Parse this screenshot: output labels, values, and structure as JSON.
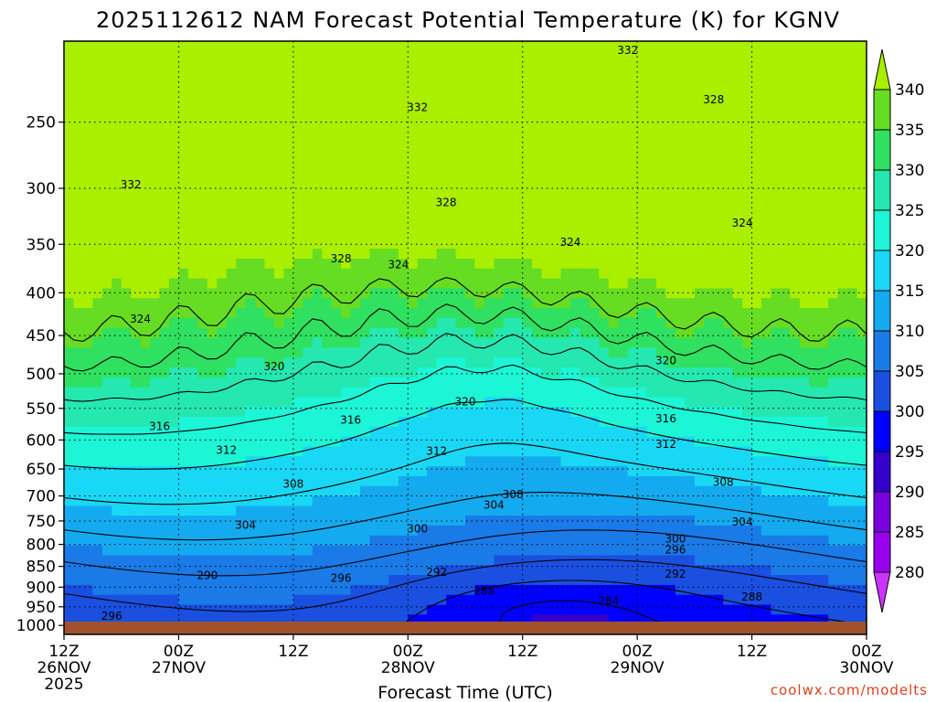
{
  "chart_data": {
    "type": "heatmap",
    "title": "2025112612 NAM Forecast Potential Temperature (K) for KGNV",
    "xlabel": "Forecast Time (UTC)",
    "credit": "coolwx.com/modelts",
    "x_ticks": [
      {
        "hour": 0,
        "line1": "12Z",
        "line2": "26NOV",
        "line3": "2025"
      },
      {
        "hour": 12,
        "line1": "00Z",
        "line2": "27NOV",
        "line3": ""
      },
      {
        "hour": 24,
        "line1": "12Z",
        "line2": "",
        "line3": ""
      },
      {
        "hour": 36,
        "line1": "00Z",
        "line2": "28NOV",
        "line3": ""
      },
      {
        "hour": 48,
        "line1": "12Z",
        "line2": "",
        "line3": ""
      },
      {
        "hour": 60,
        "line1": "00Z",
        "line2": "29NOV",
        "line3": ""
      },
      {
        "hour": 72,
        "line1": "12Z",
        "line2": "",
        "line3": ""
      },
      {
        "hour": 84,
        "line1": "00Z",
        "line2": "30NOV",
        "line3": ""
      }
    ],
    "xlim": [
      0,
      84
    ],
    "y_ticks": [
      "250",
      "300",
      "350",
      "400",
      "450",
      "500",
      "550",
      "600",
      "650",
      "700",
      "750",
      "800",
      "850",
      "900",
      "950",
      "1000"
    ],
    "ylim_hpa": [
      1025,
      200
    ],
    "colorbar_levels": [
      280,
      285,
      290,
      295,
      300,
      305,
      310,
      315,
      320,
      325,
      330,
      335,
      340
    ],
    "colorbar_colors": [
      "#cc33ff",
      "#9900ee",
      "#7a00dd",
      "#3300cc",
      "#0000ff",
      "#1a4fe0",
      "#1a7ae8",
      "#14aaf0",
      "#19d8f5",
      "#1cf5d6",
      "#24e8b0",
      "#30e060",
      "#66dd22",
      "#aaee00"
    ],
    "contour_labels": [
      {
        "value": "332",
        "hour": 7,
        "p": 297
      },
      {
        "value": "332",
        "hour": 37,
        "p": 240
      },
      {
        "value": "332",
        "hour": 59,
        "p": 205
      },
      {
        "value": "328",
        "hour": 29,
        "p": 364
      },
      {
        "value": "328",
        "hour": 40,
        "p": 312
      },
      {
        "value": "328",
        "hour": 68,
        "p": 235
      },
      {
        "value": "324",
        "hour": 8,
        "p": 430
      },
      {
        "value": "324",
        "hour": 35,
        "p": 370
      },
      {
        "value": "324",
        "hour": 53,
        "p": 348
      },
      {
        "value": "324",
        "hour": 71,
        "p": 330
      },
      {
        "value": "320",
        "hour": 22,
        "p": 490
      },
      {
        "value": "320",
        "hour": 42,
        "p": 540
      },
      {
        "value": "320",
        "hour": 63,
        "p": 482
      },
      {
        "value": "316",
        "hour": 10,
        "p": 578
      },
      {
        "value": "316",
        "hour": 30,
        "p": 568
      },
      {
        "value": "316",
        "hour": 63,
        "p": 566
      },
      {
        "value": "312",
        "hour": 17,
        "p": 617
      },
      {
        "value": "312",
        "hour": 39,
        "p": 619
      },
      {
        "value": "312",
        "hour": 63,
        "p": 607
      },
      {
        "value": "308",
        "hour": 24,
        "p": 677
      },
      {
        "value": "308",
        "hour": 47,
        "p": 697
      },
      {
        "value": "308",
        "hour": 69,
        "p": 674
      },
      {
        "value": "304",
        "hour": 19,
        "p": 759
      },
      {
        "value": "304",
        "hour": 45,
        "p": 718
      },
      {
        "value": "304",
        "hour": 71,
        "p": 752
      },
      {
        "value": "300",
        "hour": 37,
        "p": 766
      },
      {
        "value": "300",
        "hour": 64,
        "p": 788
      },
      {
        "value": "296",
        "hour": 29,
        "p": 878
      },
      {
        "value": "296",
        "hour": 64,
        "p": 812
      },
      {
        "value": "296",
        "hour": 5,
        "p": 975
      },
      {
        "value": "292",
        "hour": 39,
        "p": 864
      },
      {
        "value": "292",
        "hour": 64,
        "p": 868
      },
      {
        "value": "290",
        "hour": 15,
        "p": 871
      },
      {
        "value": "288",
        "hour": 44,
        "p": 910
      },
      {
        "value": "288",
        "hour": 72,
        "p": 925
      },
      {
        "value": "284",
        "hour": 57,
        "p": 935
      }
    ]
  }
}
